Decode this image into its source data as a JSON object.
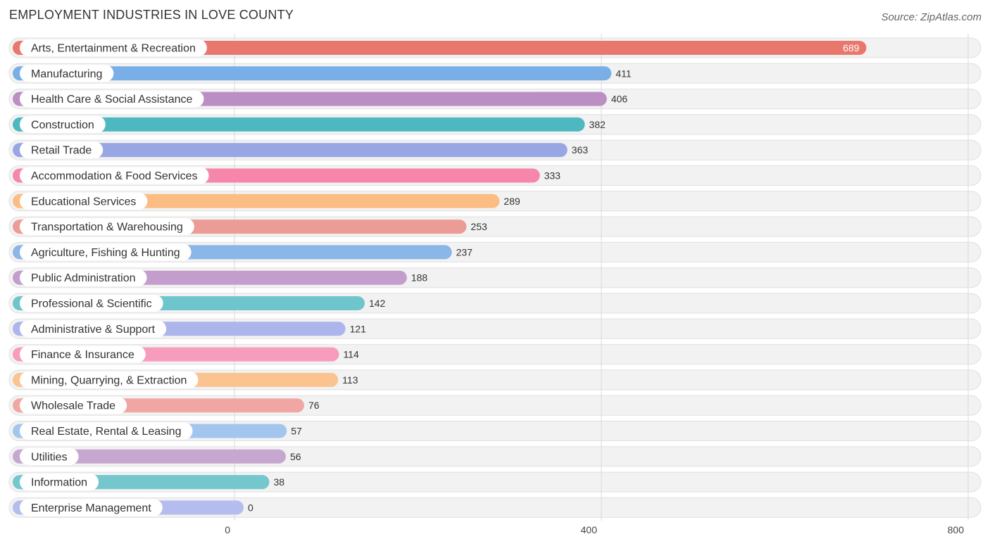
{
  "header": {
    "title": "EMPLOYMENT INDUSTRIES IN LOVE COUNTY",
    "source": "Source: ZipAtlas.com"
  },
  "chart_data": {
    "type": "bar",
    "orientation": "horizontal",
    "title": "EMPLOYMENT INDUSTRIES IN LOVE COUNTY",
    "xlabel": "",
    "ylabel": "",
    "xlim": [
      0,
      800
    ],
    "xticks": [
      0,
      400,
      800
    ],
    "grid": true,
    "categories": [
      "Arts, Entertainment & Recreation",
      "Manufacturing",
      "Health Care & Social Assistance",
      "Construction",
      "Retail Trade",
      "Accommodation & Food Services",
      "Educational Services",
      "Transportation & Warehousing",
      "Agriculture, Fishing & Hunting",
      "Public Administration",
      "Professional & Scientific",
      "Administrative & Support",
      "Finance & Insurance",
      "Mining, Quarrying, & Extraction",
      "Wholesale Trade",
      "Real Estate, Rental & Leasing",
      "Utilities",
      "Information",
      "Enterprise Management"
    ],
    "values": [
      689,
      411,
      406,
      382,
      363,
      333,
      289,
      253,
      237,
      188,
      142,
      121,
      114,
      113,
      76,
      57,
      56,
      38,
      0
    ],
    "colors": [
      "#e8786e",
      "#7aaee6",
      "#bb8fc4",
      "#4db8c0",
      "#98a6e4",
      "#f787aa",
      "#fbbd83",
      "#eb9c97",
      "#8ab6e8",
      "#c39dcb",
      "#6ec5cb",
      "#acb6ec",
      "#f79cbc",
      "#fbc38f",
      "#f0a7a3",
      "#a3c6ee",
      "#c6a7d0",
      "#73c7cd",
      "#b4bdee"
    ]
  }
}
